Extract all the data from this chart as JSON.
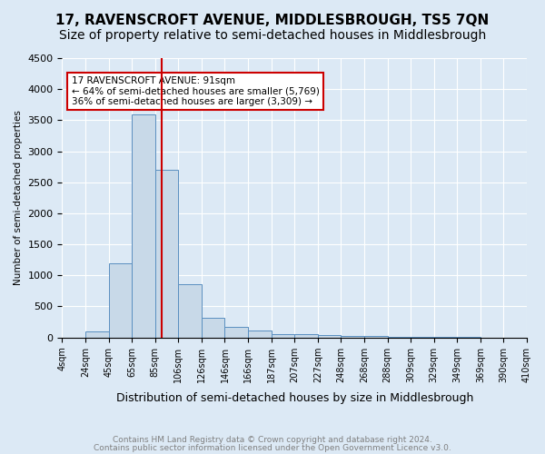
{
  "title": "17, RAVENSCROFT AVENUE, MIDDLESBROUGH, TS5 7QN",
  "subtitle": "Size of property relative to semi-detached houses in Middlesbrough",
  "xlabel": "Distribution of semi-detached houses by size in Middlesbrough",
  "ylabel": "Number of semi-detached properties",
  "footnote1": "Contains HM Land Registry data © Crown copyright and database right 2024.",
  "footnote2": "Contains public sector information licensed under the Open Government Licence v3.0.",
  "bin_labels": [
    "4sqm",
    "24sqm",
    "45sqm",
    "65sqm",
    "85sqm",
    "106sqm",
    "126sqm",
    "146sqm",
    "166sqm",
    "187sqm",
    "207sqm",
    "227sqm",
    "248sqm",
    "268sqm",
    "288sqm",
    "309sqm",
    "329sqm",
    "349sqm",
    "369sqm",
    "390sqm",
    "410sqm"
  ],
  "bar_heights": [
    0,
    100,
    1200,
    3600,
    2700,
    860,
    320,
    175,
    105,
    60,
    50,
    40,
    30,
    20,
    10,
    5,
    5,
    3,
    2,
    0
  ],
  "bar_color": "#c8d9e8",
  "bar_edge_color": "#5a8fc0",
  "red_line_x": 4.286,
  "red_line_color": "#cc0000",
  "annotation_text_line1": "17 RAVENSCROFT AVENUE: 91sqm",
  "annotation_text_line2": "← 64% of semi-detached houses are smaller (5,769)",
  "annotation_text_line3": "36% of semi-detached houses are larger (3,309) →",
  "annotation_box_color": "#ffffff",
  "annotation_box_edge": "#cc0000",
  "ylim": [
    0,
    4500
  ],
  "yticks": [
    0,
    500,
    1000,
    1500,
    2000,
    2500,
    3000,
    3500,
    4000,
    4500
  ],
  "background_color": "#dce9f5",
  "plot_background": "#dce9f5",
  "grid_color": "#ffffff",
  "title_fontsize": 11,
  "subtitle_fontsize": 10
}
